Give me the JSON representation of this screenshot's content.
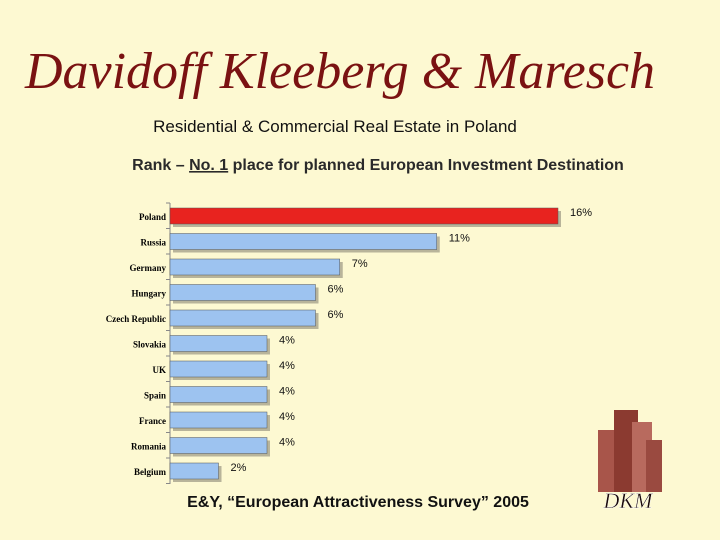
{
  "header": {
    "title": "Davidoff Kleeberg & Maresch",
    "subtitle": "Residential & Commercial Real Estate in Poland",
    "headline": {
      "before": "Rank – ",
      "highlight": "No. 1",
      "after": " place for planned European Investment Destination"
    }
  },
  "chart_data": {
    "type": "bar",
    "orientation": "horizontal",
    "categories": [
      "Poland",
      "Russia",
      "Germany",
      "Hungary",
      "Czech Republic",
      "Slovakia",
      "UK",
      "Spain",
      "France",
      "Romania",
      "Belgium"
    ],
    "values": [
      16,
      11,
      7,
      6,
      6,
      4,
      4,
      4,
      4,
      4,
      2
    ],
    "value_labels": [
      "16%",
      "11%",
      "7%",
      "6%",
      "6%",
      "4%",
      "4%",
      "4%",
      "4%",
      "4%",
      "2%"
    ],
    "colors": [
      "#e8231f",
      "#9dc3f0",
      "#9dc3f0",
      "#9dc3f0",
      "#9dc3f0",
      "#9dc3f0",
      "#9dc3f0",
      "#9dc3f0",
      "#9dc3f0",
      "#9dc3f0",
      "#9dc3f0"
    ]
  },
  "footer": {
    "source": "E&Y, “European Attractiveness Survey” 2005",
    "logo": "DKM"
  }
}
